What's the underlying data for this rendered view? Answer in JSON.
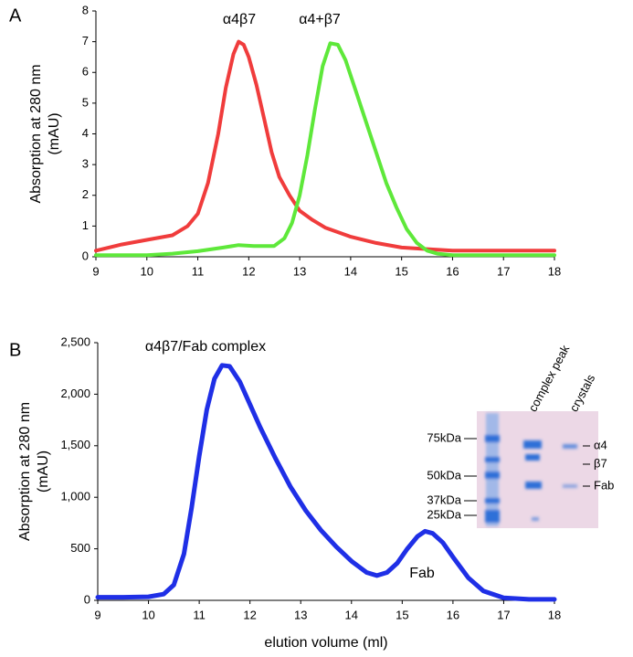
{
  "chart_data": [
    {
      "type": "line",
      "panel": "A",
      "ylabel": "Absorption at 280 nm",
      "ylabel_unit": "(mAU)",
      "annotations": [
        "α4β7",
        "α4+β7"
      ],
      "xlim": [
        9,
        18
      ],
      "xticks": [
        9,
        10,
        11,
        12,
        13,
        14,
        15,
        16,
        17,
        18
      ],
      "ylim": [
        0,
        8
      ],
      "yticks": [
        0,
        1,
        2,
        3,
        4,
        5,
        6,
        7,
        8
      ],
      "series": [
        {
          "color": "#f03c3c",
          "x": [
            9,
            9.5,
            10,
            10.5,
            10.8,
            11,
            11.2,
            11.4,
            11.55,
            11.7,
            11.8,
            11.9,
            12,
            12.15,
            12.3,
            12.45,
            12.6,
            12.8,
            13,
            13.25,
            13.5,
            14,
            14.5,
            15,
            15.5,
            16,
            17,
            18
          ],
          "values": [
            0.2,
            0.4,
            0.55,
            0.7,
            1.0,
            1.4,
            2.4,
            4.0,
            5.5,
            6.6,
            7.0,
            6.9,
            6.5,
            5.6,
            4.5,
            3.4,
            2.6,
            2.0,
            1.5,
            1.2,
            0.95,
            0.65,
            0.45,
            0.3,
            0.25,
            0.2,
            0.2,
            0.2
          ]
        },
        {
          "color": "#5ee83a",
          "x": [
            9,
            10,
            10.5,
            11,
            11.5,
            11.8,
            12.1,
            12.5,
            12.7,
            12.85,
            13,
            13.15,
            13.3,
            13.45,
            13.6,
            13.75,
            13.9,
            14.1,
            14.3,
            14.5,
            14.7,
            14.9,
            15.1,
            15.3,
            15.5,
            15.7,
            16,
            17,
            18
          ],
          "values": [
            0.05,
            0.05,
            0.1,
            0.18,
            0.3,
            0.38,
            0.35,
            0.35,
            0.6,
            1.1,
            2.0,
            3.3,
            4.8,
            6.2,
            6.95,
            6.9,
            6.4,
            5.4,
            4.4,
            3.4,
            2.4,
            1.6,
            0.9,
            0.45,
            0.2,
            0.1,
            0.05,
            0.05,
            0.05
          ]
        }
      ]
    },
    {
      "type": "line",
      "panel": "B",
      "ylabel": "Absorption at 280 nm",
      "ylabel_unit": "(mAU)",
      "xlabel": "elution volume (ml)",
      "annotations": [
        "α4β7/Fab complex",
        "Fab"
      ],
      "xlim": [
        9,
        18
      ],
      "xticks": [
        9,
        10,
        11,
        12,
        13,
        14,
        15,
        16,
        17,
        18
      ],
      "ylim": [
        0,
        2500
      ],
      "yticks": [
        0,
        500,
        {
          "value": 1000,
          "label": "1,000"
        },
        {
          "value": 1500,
          "label": "1,500"
        },
        {
          "value": 2000,
          "label": "2,000"
        },
        {
          "value": 2500,
          "label": "2,500"
        }
      ],
      "series": [
        {
          "color": "#1f2fe6",
          "x": [
            9,
            9.5,
            10,
            10.3,
            10.5,
            10.7,
            10.85,
            11,
            11.15,
            11.3,
            11.45,
            11.6,
            11.8,
            12,
            12.2,
            12.5,
            12.8,
            13.1,
            13.4,
            13.7,
            14,
            14.3,
            14.5,
            14.7,
            14.9,
            15.1,
            15.3,
            15.45,
            15.6,
            15.8,
            16,
            16.3,
            16.6,
            17,
            17.5,
            18
          ],
          "values": [
            30,
            30,
            35,
            60,
            150,
            450,
            900,
            1400,
            1850,
            2150,
            2280,
            2270,
            2120,
            1900,
            1680,
            1380,
            1100,
            870,
            680,
            520,
            380,
            270,
            240,
            270,
            360,
            500,
            620,
            670,
            650,
            560,
            420,
            220,
            90,
            25,
            10,
            10
          ]
        }
      ]
    }
  ],
  "gel": {
    "markers": [
      "75kDa",
      "50kDa",
      "37kDa",
      "25kDa"
    ],
    "lanes": [
      "complex peak",
      "crystals"
    ],
    "bands": [
      "α4",
      "β7",
      "Fab"
    ]
  }
}
